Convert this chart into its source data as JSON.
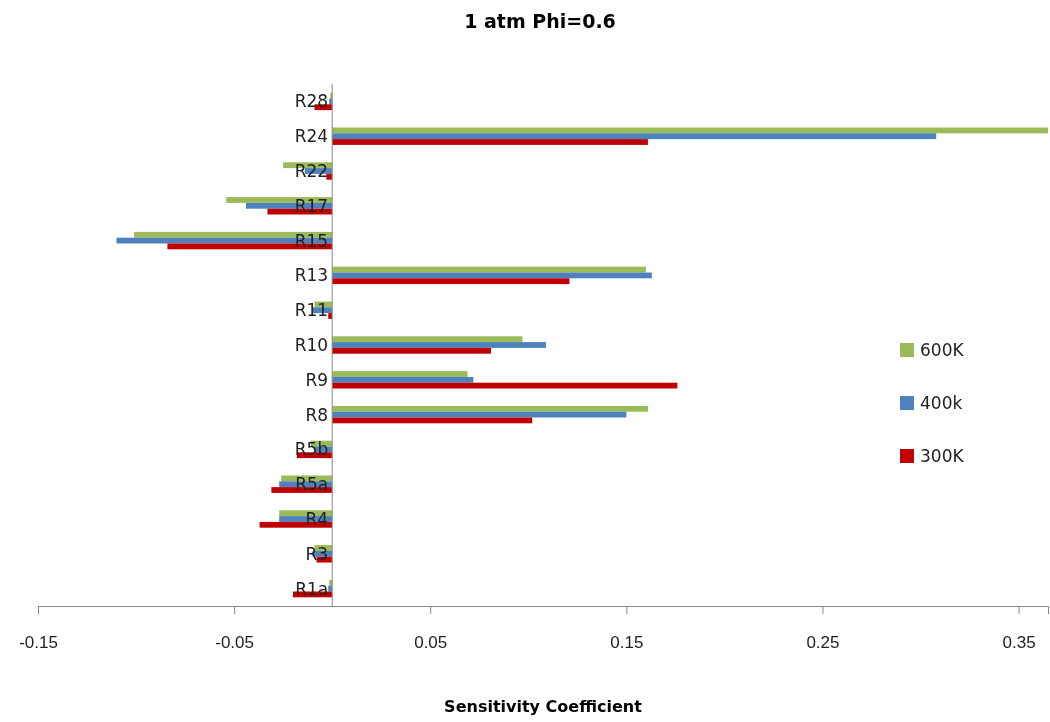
{
  "chart_data": {
    "type": "bar",
    "orientation": "horizontal",
    "title": "1 atm  Phi=0.6",
    "xlabel": "Sensitivity Coefficient",
    "categories": [
      "R28",
      "R24",
      "R22",
      "R17",
      "R15",
      "R13",
      "R11",
      "R10",
      "R9",
      "R8",
      "R5b",
      "R5a",
      "R4",
      "R3",
      "R1a"
    ],
    "series": [
      {
        "name": "600K",
        "color": "#9bbb59",
        "values": [
          -0.001,
          0.365,
          -0.025,
          -0.054,
          -0.101,
          0.16,
          -0.009,
          0.097,
          0.069,
          0.161,
          -0.011,
          -0.026,
          -0.027,
          -0.009,
          -0.0015
        ]
      },
      {
        "name": "400k",
        "color": "#4f81bd",
        "values": [
          -0.0015,
          0.308,
          -0.014,
          -0.044,
          -0.11,
          0.163,
          -0.01,
          0.109,
          0.072,
          0.15,
          -0.009,
          -0.027,
          -0.027,
          -0.01,
          -0.002
        ]
      },
      {
        "name": "300K",
        "color": "#c00000",
        "values": [
          -0.009,
          0.161,
          -0.003,
          -0.033,
          -0.084,
          0.121,
          -0.002,
          0.081,
          0.176,
          0.102,
          -0.018,
          -0.031,
          -0.037,
          -0.008,
          -0.02
        ]
      }
    ],
    "xlim": [
      -0.15,
      0.365
    ],
    "xticks": [
      -0.15,
      -0.05,
      0.05,
      0.15,
      0.25,
      0.35
    ],
    "grid": false,
    "legend": "right"
  }
}
